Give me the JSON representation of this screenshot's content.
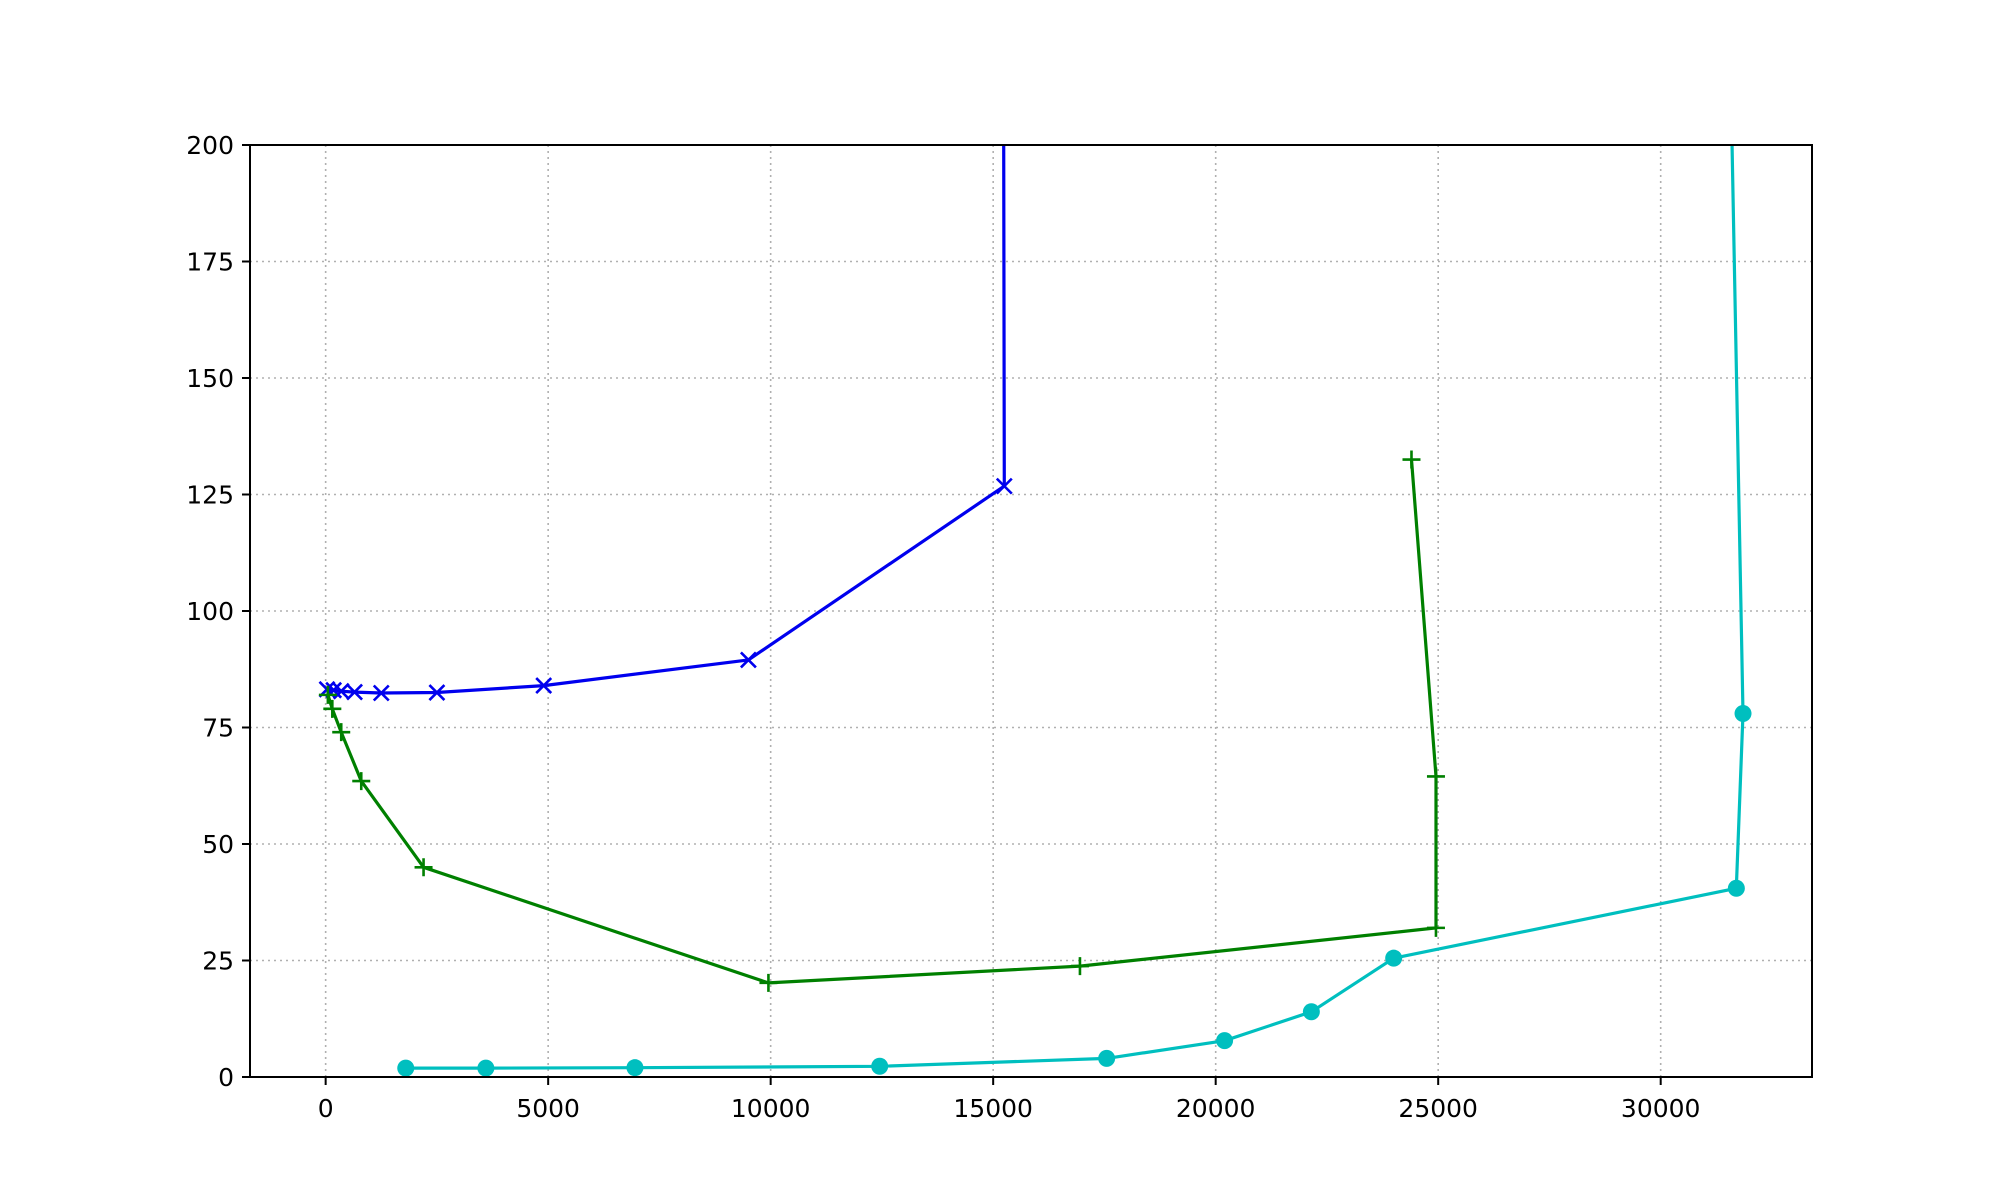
{
  "chart_data": {
    "type": "line",
    "title": "",
    "xlabel": "",
    "ylabel": "",
    "xlim": [
      -1700,
      33400
    ],
    "ylim": [
      0,
      200
    ],
    "grid": true,
    "x_ticks": [
      0,
      5000,
      10000,
      15000,
      20000,
      25000,
      30000
    ],
    "x_tick_labels": [
      "0",
      "5000",
      "10000",
      "15000",
      "20000",
      "25000",
      "30000"
    ],
    "y_ticks": [
      0,
      25,
      50,
      75,
      100,
      125,
      150,
      175,
      200
    ],
    "y_tick_labels": [
      "0",
      "25",
      "50",
      "75",
      "100",
      "125",
      "150",
      "175",
      "200"
    ],
    "series": [
      {
        "color": "#0000ee",
        "marker": "x",
        "points": [
          [
            15200,
            400
          ],
          [
            15250,
            126.8
          ],
          [
            9500,
            89.5
          ],
          [
            4900,
            84
          ],
          [
            2500,
            82.5
          ],
          [
            1250,
            82.4
          ],
          [
            650,
            82.6
          ],
          [
            350,
            82.8
          ],
          [
            180,
            83
          ],
          [
            30,
            83.2
          ]
        ]
      },
      {
        "color": "#008000",
        "marker": "+",
        "points": [
          [
            24400,
            132.5
          ],
          [
            24950,
            64.5
          ],
          [
            24950,
            32
          ],
          [
            16950,
            23.8
          ],
          [
            9950,
            20.2
          ],
          [
            2200,
            45
          ],
          [
            800,
            63.5
          ],
          [
            350,
            74
          ],
          [
            150,
            79
          ],
          [
            50,
            82
          ]
        ]
      },
      {
        "color": "#00bfbf",
        "marker": "o",
        "points": [
          [
            31200,
            400
          ],
          [
            31850,
            78
          ],
          [
            31700,
            40.5
          ],
          [
            24000,
            25.5
          ],
          [
            22150,
            14
          ],
          [
            20200,
            7.8
          ],
          [
            17550,
            4
          ],
          [
            12450,
            2.3
          ],
          [
            6950,
            2
          ],
          [
            3600,
            1.9
          ],
          [
            1800,
            1.9
          ]
        ]
      }
    ]
  }
}
